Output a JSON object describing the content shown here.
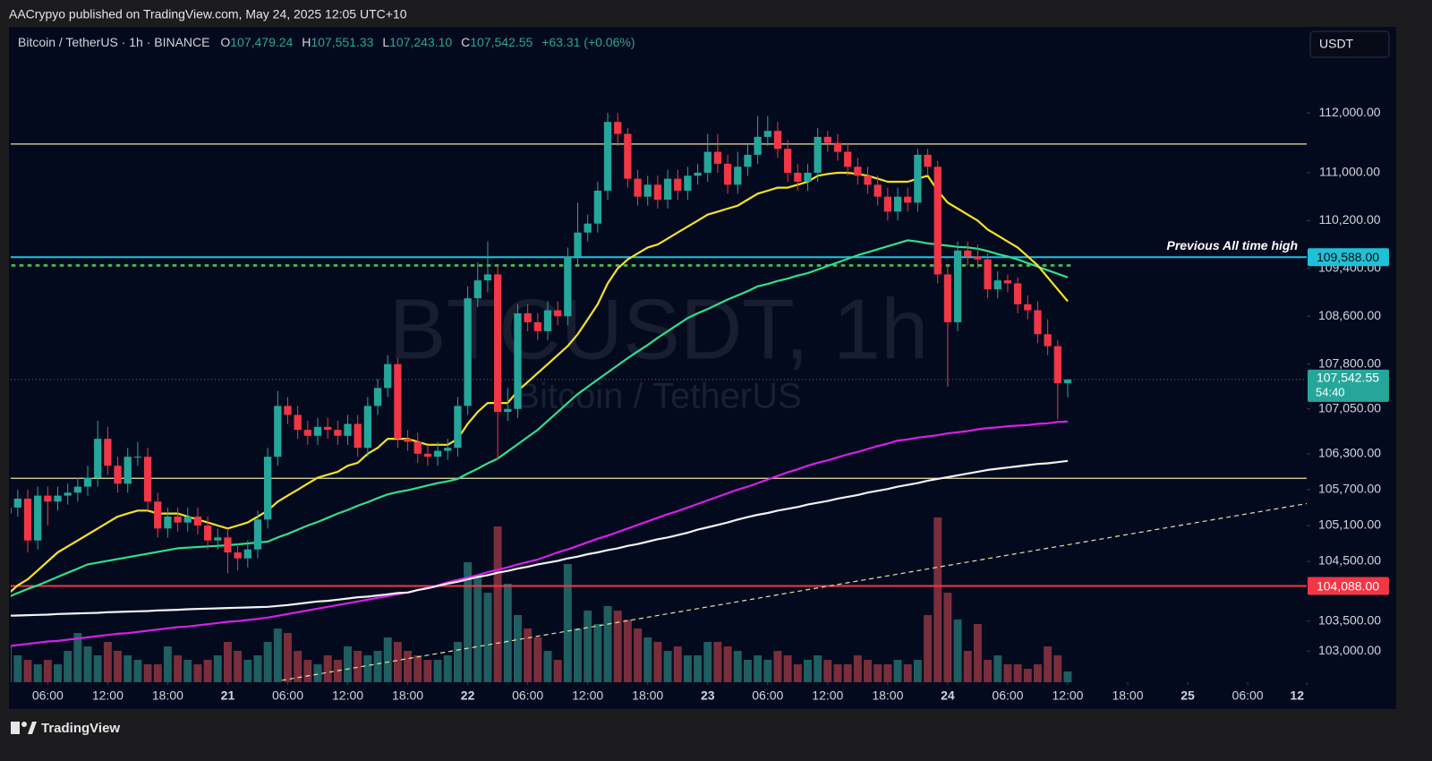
{
  "header": {
    "published": "AACrypyo published on TradingView.com, May 24, 2025 12:05 UTC+10"
  },
  "footer": {
    "brand": "TradingView"
  },
  "chart_data": {
    "type": "candlestick",
    "title": "Bitcoin / TetherUS · 1h · BINANCE",
    "ohlc_keys": [
      "O",
      "H",
      "L",
      "C"
    ],
    "ohlc_labels": [
      "107,479.24",
      "107,551.33",
      "107,243.10",
      "107,542.55"
    ],
    "change_label": "+63.31 (+0.06%)",
    "countdown": "54:40",
    "currency": "USDT",
    "watermark": "BTCUSDT, 1h",
    "watermark_subtitle": "Bitcoin / TetherUS",
    "up_color": "#26a69a",
    "down_color": "#f23645",
    "volume_up_color": "#1f5e61",
    "volume_down_color": "#7a2e3b",
    "xlim": [
      0.3,
      129.9
    ],
    "xticks": [
      {
        "value": 4,
        "label": "06:00"
      },
      {
        "value": 10,
        "label": "12:00"
      },
      {
        "value": 16,
        "label": "18:00"
      },
      {
        "value": 22,
        "label": "21"
      },
      {
        "value": 28,
        "label": "06:00"
      },
      {
        "value": 34,
        "label": "12:00"
      },
      {
        "value": 40,
        "label": "18:00"
      },
      {
        "value": 46,
        "label": "22"
      },
      {
        "value": 52,
        "label": "06:00"
      },
      {
        "value": 58,
        "label": "12:00"
      },
      {
        "value": 64,
        "label": "18:00"
      },
      {
        "value": 70,
        "label": "23"
      },
      {
        "value": 76,
        "label": "06:00"
      },
      {
        "value": 82,
        "label": "12:00"
      },
      {
        "value": 88,
        "label": "18:00"
      },
      {
        "value": 94,
        "label": "24"
      },
      {
        "value": 100,
        "label": "06:00"
      },
      {
        "value": 106,
        "label": "12:00"
      },
      {
        "value": 112,
        "label": "18:00"
      },
      {
        "value": 118,
        "label": "25"
      },
      {
        "value": 124,
        "label": "06:00"
      },
      {
        "value": 130,
        "label": "12"
      }
    ],
    "ylim": [
      102030,
      113440
    ],
    "yticks": [
      {
        "value": 112000,
        "label": "112,000.00"
      },
      {
        "value": 111000,
        "label": "111,000.00"
      },
      {
        "value": 110200,
        "label": "110,200.00"
      },
      {
        "value": 109400,
        "label": "109,400.00"
      },
      {
        "value": 108600,
        "label": "108,600.00"
      },
      {
        "value": 107800,
        "label": "107,800.00"
      },
      {
        "value": 107050,
        "label": "107,050.00"
      },
      {
        "value": 106300,
        "label": "106,300.00"
      },
      {
        "value": 105700,
        "label": "105,700.00"
      },
      {
        "value": 105100,
        "label": "105,100.00"
      },
      {
        "value": 104500,
        "label": "104,500.00"
      },
      {
        "value": 103500,
        "label": "103,500.00"
      },
      {
        "value": 103000,
        "label": "103,000.00"
      }
    ],
    "open": [
      105300,
      105400,
      105550,
      104850,
      105600,
      105500,
      105600,
      105650,
      105750,
      105900,
      106550,
      106100,
      105800,
      106250,
      106250,
      105500,
      105050,
      105250,
      105150,
      105250,
      105100,
      104850,
      104900,
      104650,
      104550,
      104700,
      105200,
      106250,
      107100,
      106950,
      106700,
      106600,
      106750,
      106700,
      106600,
      106800,
      106400,
      107100,
      107400,
      107800,
      106550,
      106500,
      106300,
      106250,
      106350,
      106400,
      107100,
      108900,
      109200,
      109300,
      107000,
      107050,
      108650,
      108500,
      108350,
      108700,
      108600,
      109600,
      110000,
      110150,
      110700,
      111850,
      111650,
      110900,
      110600,
      110800,
      110550,
      110900,
      110700,
      110950,
      111000,
      111350,
      111150,
      110800,
      111100,
      111300,
      111600,
      111700,
      111400,
      111000,
      110850,
      111000,
      111600,
      111500,
      111350,
      111100,
      110950,
      110800,
      110600,
      110350,
      110600,
      110500,
      111300,
      111100,
      109300,
      108500,
      109700,
      109600,
      109550,
      109050,
      109200,
      109150,
      108800,
      108700,
      108300,
      108100,
      107479.24
    ],
    "high": [
      105550,
      105700,
      105700,
      105750,
      105750,
      105750,
      105800,
      105900,
      106100,
      106850,
      106750,
      106250,
      106400,
      106500,
      106400,
      105650,
      105400,
      105400,
      105400,
      105400,
      105250,
      105050,
      105050,
      104800,
      104850,
      105350,
      106400,
      107350,
      107250,
      107100,
      106850,
      106900,
      106900,
      106850,
      106950,
      106950,
      107250,
      107550,
      107950,
      107900,
      106700,
      106650,
      106450,
      106500,
      106550,
      107250,
      109100,
      109500,
      109850,
      109450,
      107400,
      108800,
      108800,
      108650,
      108850,
      108850,
      109750,
      110500,
      110300,
      110850,
      112000,
      112000,
      111750,
      111050,
      110950,
      110950,
      111050,
      111050,
      111100,
      111150,
      111650,
      111650,
      111300,
      111350,
      111500,
      111950,
      111950,
      111850,
      111550,
      111150,
      111150,
      111750,
      111700,
      111650,
      111500,
      111250,
      111100,
      110950,
      110750,
      110750,
      110750,
      111400,
      111400,
      111200,
      109450,
      109850,
      109850,
      109800,
      109650,
      109350,
      109300,
      109250,
      108950,
      108850,
      108550,
      108200,
      107551.33
    ],
    "low": [
      105150,
      105250,
      104650,
      104700,
      105100,
      105350,
      105450,
      105500,
      105600,
      105750,
      105950,
      105650,
      105650,
      106100,
      105350,
      104900,
      104900,
      105000,
      105000,
      104950,
      104700,
      104700,
      104300,
      104350,
      104400,
      104550,
      105050,
      106100,
      106800,
      106550,
      106450,
      106450,
      106550,
      106450,
      106450,
      106250,
      106250,
      106950,
      107250,
      106400,
      106350,
      106150,
      106100,
      106100,
      106200,
      106250,
      106950,
      108750,
      109000,
      106200,
      106850,
      106900,
      108350,
      108200,
      108200,
      108450,
      108450,
      109450,
      109850,
      110000,
      110550,
      111450,
      110750,
      110450,
      110450,
      110400,
      110400,
      110550,
      110550,
      110800,
      110850,
      111000,
      110650,
      110650,
      110950,
      111150,
      111450,
      111250,
      110850,
      110700,
      110700,
      110850,
      111350,
      111200,
      110950,
      110800,
      110650,
      110450,
      110200,
      110200,
      110350,
      110350,
      110950,
      109150,
      107420,
      108350,
      109450,
      109400,
      108900,
      108900,
      109000,
      108650,
      108550,
      108150,
      107950,
      106880,
      107243.1
    ],
    "close": [
      105400,
      105550,
      104850,
      105600,
      105500,
      105600,
      105650,
      105750,
      105900,
      106550,
      106100,
      105800,
      106250,
      106250,
      105500,
      105050,
      105250,
      105150,
      105250,
      105100,
      104850,
      104900,
      104650,
      104550,
      104700,
      105200,
      106250,
      107100,
      106950,
      106700,
      106600,
      106750,
      106700,
      106600,
      106800,
      106400,
      107100,
      107400,
      107800,
      106550,
      106500,
      106300,
      106250,
      106350,
      106400,
      107100,
      108900,
      109200,
      109300,
      107000,
      107050,
      108650,
      108500,
      108350,
      108700,
      108600,
      109600,
      110000,
      110150,
      110700,
      111850,
      111650,
      110900,
      110600,
      110800,
      110550,
      110900,
      110700,
      110950,
      111000,
      111350,
      111150,
      110800,
      111100,
      111300,
      111600,
      111700,
      111400,
      111000,
      110850,
      111000,
      111600,
      111500,
      111350,
      111100,
      110950,
      110800,
      110600,
      110350,
      110600,
      110500,
      111300,
      111100,
      109300,
      108500,
      109700,
      109600,
      109550,
      109050,
      109200,
      109150,
      108800,
      108700,
      108300,
      108100,
      107479.24,
      107542.55
    ],
    "volume_ylim": [
      0,
      732
    ],
    "volume": [
      40,
      30,
      25,
      20,
      25,
      20,
      35,
      55,
      40,
      30,
      45,
      35,
      30,
      25,
      20,
      20,
      40,
      30,
      25,
      20,
      25,
      30,
      45,
      35,
      25,
      30,
      45,
      60,
      55,
      35,
      25,
      20,
      30,
      25,
      40,
      35,
      30,
      35,
      50,
      45,
      35,
      30,
      25,
      25,
      30,
      45,
      134,
      120,
      100,
      174,
      110,
      75,
      60,
      50,
      35,
      25,
      132,
      60,
      80,
      65,
      85,
      80,
      70,
      60,
      50,
      45,
      35,
      40,
      30,
      30,
      45,
      45,
      40,
      35,
      25,
      30,
      25,
      35,
      30,
      20,
      25,
      30,
      25,
      20,
      20,
      30,
      25,
      20,
      20,
      25,
      20,
      25,
      75,
      184,
      100,
      70,
      35,
      65,
      25,
      30,
      20,
      20,
      15,
      20,
      40,
      30,
      12
    ],
    "indicators": [
      {
        "color": "#2ee08a",
        "values": [
          103900,
          103970,
          104040,
          104100,
          104170,
          104240,
          104310,
          104380,
          104450,
          104480,
          104510,
          104540,
          104570,
          104600,
          104630,
          104660,
          104690,
          104720,
          104730,
          104740,
          104750,
          104760,
          104770,
          104785,
          104800,
          104815,
          104830,
          104900,
          104960,
          105030,
          105100,
          105160,
          105230,
          105300,
          105360,
          105430,
          105490,
          105560,
          105620,
          105660,
          105690,
          105730,
          105770,
          105810,
          105840,
          105880,
          105970,
          106050,
          106140,
          106220,
          106340,
          106460,
          106580,
          106700,
          106850,
          107000,
          107150,
          107300,
          107420,
          107540,
          107660,
          107780,
          107900,
          108010,
          108120,
          108240,
          108350,
          108460,
          108570,
          108650,
          108720,
          108800,
          108880,
          108950,
          109020,
          109100,
          109140,
          109190,
          109230,
          109280,
          109320,
          109380,
          109440,
          109500,
          109560,
          109620,
          109670,
          109720,
          109770,
          109820,
          109870,
          109850,
          109820,
          109800,
          109780,
          109760,
          109750,
          109730,
          109690,
          109640,
          109600,
          109550,
          109490,
          109430,
          109370,
          109310,
          109250
        ]
      },
      {
        "color": "#f7e124",
        "values": [
          103950,
          104100,
          104200,
          104350,
          104500,
          104650,
          104750,
          104850,
          104950,
          105050,
          105150,
          105250,
          105300,
          105350,
          105350,
          105300,
          105300,
          105300,
          105250,
          105200,
          105150,
          105100,
          105050,
          105100,
          105150,
          105250,
          105350,
          105500,
          105600,
          105700,
          105800,
          105900,
          105950,
          106000,
          106100,
          106150,
          106300,
          106400,
          106550,
          106550,
          106550,
          106500,
          106450,
          106450,
          106450,
          106550,
          106800,
          107000,
          107150,
          107150,
          107150,
          107350,
          107500,
          107650,
          107800,
          107950,
          108100,
          108300,
          108550,
          108800,
          109150,
          109400,
          109550,
          109650,
          109750,
          109800,
          109900,
          110000,
          110100,
          110200,
          110300,
          110350,
          110400,
          110450,
          110550,
          110650,
          110700,
          110750,
          110750,
          110800,
          110850,
          110950,
          110980,
          111000,
          111000,
          110980,
          110950,
          110900,
          110850,
          110850,
          110850,
          110900,
          110950,
          110700,
          110500,
          110400,
          110300,
          110200,
          110050,
          109950,
          109850,
          109750,
          109600,
          109450,
          109250,
          109050,
          108850
        ]
      },
      {
        "color": "#d61fe8",
        "values": [
          103080,
          103100,
          103120,
          103140,
          103160,
          103170,
          103190,
          103210,
          103230,
          103250,
          103270,
          103290,
          103300,
          103320,
          103340,
          103360,
          103380,
          103400,
          103410,
          103430,
          103450,
          103470,
          103490,
          103500,
          103520,
          103540,
          103560,
          103590,
          103620,
          103650,
          103680,
          103710,
          103740,
          103770,
          103800,
          103830,
          103860,
          103890,
          103920,
          103950,
          103980,
          104020,
          104060,
          104100,
          104150,
          104190,
          104230,
          104270,
          104320,
          104360,
          104400,
          104450,
          104490,
          104530,
          104590,
          104650,
          104700,
          104760,
          104820,
          104880,
          104930,
          104990,
          105050,
          105110,
          105170,
          105230,
          105290,
          105340,
          105400,
          105460,
          105520,
          105580,
          105640,
          105700,
          105750,
          105810,
          105870,
          105930,
          105990,
          106040,
          106100,
          106150,
          106190,
          106240,
          106290,
          106330,
          106380,
          106430,
          106470,
          106520,
          106540,
          106570,
          106590,
          106610,
          106640,
          106660,
          106680,
          106710,
          106730,
          106740,
          106760,
          106770,
          106780,
          106800,
          106810,
          106830,
          106840
        ]
      },
      {
        "color": "#f2f2f2",
        "values": [
          103590,
          103595,
          103600,
          103605,
          103610,
          103620,
          103625,
          103630,
          103635,
          103640,
          103650,
          103655,
          103660,
          103665,
          103670,
          103680,
          103685,
          103690,
          103700,
          103705,
          103710,
          103715,
          103720,
          103725,
          103730,
          103735,
          103740,
          103755,
          103770,
          103790,
          103810,
          103830,
          103840,
          103860,
          103880,
          103900,
          103910,
          103930,
          103950,
          103970,
          103980,
          104020,
          104050,
          104090,
          104130,
          104160,
          104200,
          104240,
          104270,
          104310,
          104340,
          104380,
          104410,
          104450,
          104480,
          104510,
          104550,
          104580,
          104620,
          104650,
          104690,
          104720,
          104760,
          104790,
          104830,
          104870,
          104900,
          104940,
          104980,
          105030,
          105070,
          105110,
          105150,
          105200,
          105240,
          105280,
          105310,
          105350,
          105380,
          105410,
          105450,
          105480,
          105510,
          105550,
          105580,
          105610,
          105650,
          105680,
          105710,
          105750,
          105780,
          105810,
          105850,
          105880,
          105910,
          105940,
          105970,
          106000,
          106030,
          106050,
          106070,
          106090,
          106110,
          106130,
          106140,
          106160,
          106180
        ]
      }
    ],
    "levels": [
      {
        "value": 111480,
        "color": "#e9e3a6"
      },
      {
        "value": 109588,
        "color": "#1fc1d8",
        "label": "109,588.00",
        "annotation": "Previous All time high"
      },
      {
        "value": 109450,
        "color": "#4caf50",
        "dotted": true
      },
      {
        "value": 105890,
        "color": "#e9e3a6"
      },
      {
        "value": 104088,
        "color": "#f23645",
        "label": "104,088.00"
      }
    ],
    "trendline": {
      "x": [
        27.4,
        130
      ],
      "values": [
        102510,
        105470
      ],
      "color": "#e9e3a6"
    }
  }
}
